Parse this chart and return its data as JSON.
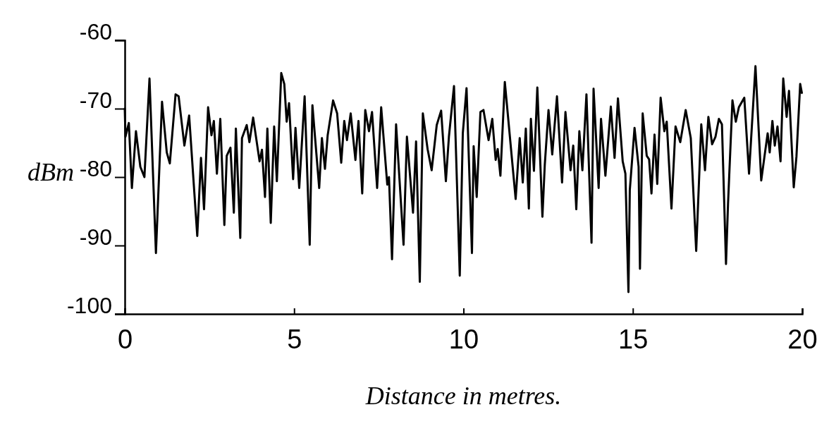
{
  "chart_data": {
    "type": "line",
    "xlabel": "Distance in metres.",
    "ylabel": "dBm",
    "xlim": [
      0,
      20
    ],
    "ylim": [
      -100,
      -60
    ],
    "xticks": [
      0,
      5,
      10,
      15,
      20
    ],
    "yticks": [
      -60,
      -70,
      -80,
      -90,
      -100
    ],
    "grid": false,
    "marker": "none",
    "line_style": "solid",
    "series": [
      {
        "color": "#000000",
        "x": [
          0,
          0.02,
          0.12,
          0.21,
          0.33,
          0.46,
          0.58,
          0.73,
          0.92,
          1.1,
          1.24,
          1.33,
          1.5,
          1.59,
          1.76,
          1.9,
          2.14,
          2.25,
          2.34,
          2.46,
          2.56,
          2.63,
          2.72,
          2.82,
          2.94,
          3.01,
          3.12,
          3.22,
          3.28,
          3.41,
          3.46,
          3.6,
          3.68,
          3.79,
          3.98,
          4.05,
          4.14,
          4.21,
          4.31,
          4.41,
          4.49,
          4.62,
          4.71,
          4.78,
          4.85,
          4.97,
          5.04,
          5.15,
          5.31,
          5.46,
          5.54,
          5.74,
          5.82,
          5.91,
          5.99,
          6.15,
          6.27,
          6.39,
          6.48,
          6.56,
          6.67,
          6.81,
          6.9,
          7.01,
          7.1,
          7.21,
          7.3,
          7.45,
          7.57,
          7.75,
          7.8,
          7.89,
          8.01,
          8.23,
          8.33,
          8.51,
          8.6,
          8.71,
          8.8,
          8.94,
          9.06,
          9.21,
          9.34,
          9.48,
          9.57,
          9.72,
          9.89,
          9.98,
          10.09,
          10.25,
          10.3,
          10.39,
          10.5,
          10.59,
          10.74,
          10.85,
          10.95,
          11.01,
          11.09,
          11.22,
          11.54,
          11.66,
          11.75,
          11.84,
          11.93,
          11.99,
          12.08,
          12.18,
          12.33,
          12.4,
          12.51,
          12.62,
          12.76,
          12.91,
          13.01,
          13.16,
          13.24,
          13.33,
          13.42,
          13.51,
          13.63,
          13.78,
          13.84,
          13.99,
          14.06,
          14.19,
          14.35,
          14.46,
          14.56,
          14.7,
          14.78,
          14.87,
          14.91,
          15.05,
          15.17,
          15.21,
          15.29,
          15.41,
          15.48,
          15.55,
          15.64,
          15.72,
          15.82,
          15.93,
          16.0,
          16.14,
          16.26,
          16.4,
          16.56,
          16.71,
          16.87,
          17.02,
          17.13,
          17.23,
          17.34,
          17.44,
          17.54,
          17.63,
          17.75,
          17.81,
          17.94,
          18.04,
          18.13,
          18.29,
          18.43,
          18.62,
          18.79,
          18.88,
          18.98,
          19.04,
          19.12,
          19.19,
          19.27,
          19.36,
          19.44,
          19.54,
          19.61,
          19.75,
          19.83,
          19.94,
          19.99
        ],
        "values": [
          -70,
          -74.1,
          -72.1,
          -81.6,
          -73.3,
          -78.5,
          -80.0,
          -65.6,
          -91.1,
          -69.0,
          -76.4,
          -78.0,
          -67.9,
          -68.2,
          -75.4,
          -71.0,
          -88.6,
          -77.2,
          -84.7,
          -69.8,
          -73.9,
          -71.8,
          -79.5,
          -71.5,
          -87.0,
          -76.9,
          -75.7,
          -85.2,
          -72.9,
          -88.9,
          -74.3,
          -72.4,
          -74.9,
          -71.3,
          -77.7,
          -76.0,
          -82.9,
          -72.9,
          -86.7,
          -72.6,
          -80.6,
          -64.8,
          -66.4,
          -71.9,
          -69.2,
          -80.3,
          -72.8,
          -81.6,
          -68.2,
          -89.9,
          -69.5,
          -81.6,
          -74.3,
          -78.8,
          -73.9,
          -68.8,
          -70.7,
          -77.9,
          -71.8,
          -74.6,
          -70.7,
          -77.5,
          -71.8,
          -82.4,
          -70.2,
          -73.3,
          -70.5,
          -81.6,
          -69.8,
          -81.1,
          -80.0,
          -92.0,
          -72.3,
          -89.9,
          -74.1,
          -85.2,
          -74.8,
          -95.3,
          -70.7,
          -75.9,
          -79.0,
          -72.4,
          -70.3,
          -80.6,
          -74.1,
          -66.7,
          -94.4,
          -73.6,
          -67.0,
          -91.1,
          -75.5,
          -82.9,
          -70.5,
          -70.2,
          -74.6,
          -71.5,
          -77.5,
          -75.9,
          -79.8,
          -66.1,
          -83.2,
          -74.3,
          -80.8,
          -72.9,
          -84.6,
          -71.5,
          -79.1,
          -66.9,
          -85.8,
          -78.2,
          -70.2,
          -76.7,
          -68.2,
          -80.8,
          -70.5,
          -79.0,
          -75.4,
          -84.7,
          -73.3,
          -79.0,
          -67.9,
          -89.6,
          -67.1,
          -81.6,
          -71.5,
          -79.8,
          -69.7,
          -77.2,
          -68.5,
          -77.7,
          -79.5,
          -96.8,
          -81.9,
          -72.8,
          -78.5,
          -93.4,
          -70.7,
          -76.9,
          -77.4,
          -82.4,
          -73.8,
          -81.0,
          -68.4,
          -73.3,
          -71.9,
          -84.6,
          -72.6,
          -74.9,
          -70.2,
          -74.3,
          -90.8,
          -72.3,
          -79.0,
          -71.2,
          -75.2,
          -74.1,
          -71.5,
          -72.3,
          -92.7,
          -83.9,
          -68.8,
          -71.9,
          -69.8,
          -68.4,
          -79.5,
          -63.8,
          -80.5,
          -77.2,
          -73.6,
          -76.4,
          -71.8,
          -75.4,
          -72.6,
          -77.7,
          -65.6,
          -71.2,
          -67.4,
          -81.5,
          -77.0,
          -66.4,
          -67.7
        ]
      }
    ]
  }
}
